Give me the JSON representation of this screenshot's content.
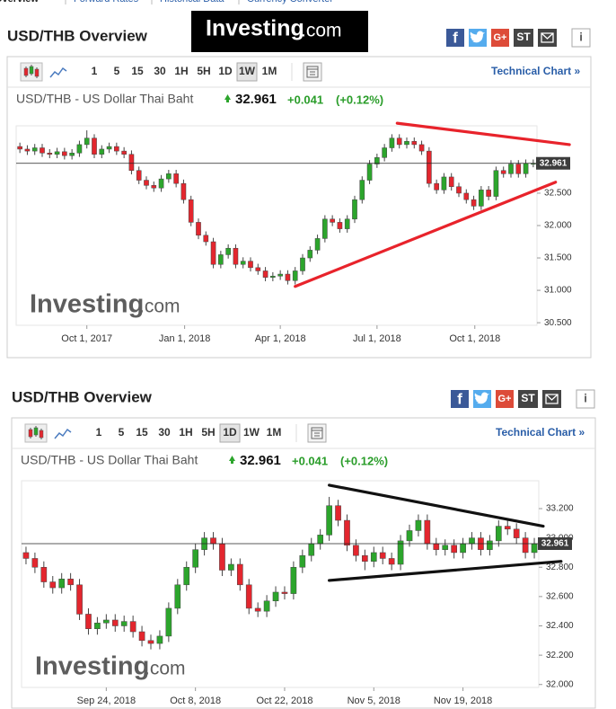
{
  "nav": [
    "Overview",
    "Forward Rates",
    "Historical Data",
    "Currency Converter"
  ],
  "logo": {
    "name": "Investing",
    "suffix": ".com"
  },
  "panels": [
    {
      "heading": "USD/THB Overview",
      "share": [
        "f",
        "G+",
        "ST"
      ],
      "info": "i",
      "intervals": [
        "1",
        "5",
        "15",
        "30",
        "1H",
        "5H",
        "1D",
        "1W",
        "1M"
      ],
      "selected_interval": "1W",
      "technical": "Technical Chart »",
      "instrument": "USD/THB - US Dollar Thai Baht",
      "price": "32.961",
      "change": "+0.041",
      "change_pct": "(+0.12%)"
    },
    {
      "heading": "USD/THB Overview",
      "share": [
        "f",
        "G+",
        "ST"
      ],
      "info": "i",
      "intervals": [
        "1",
        "5",
        "15",
        "30",
        "1H",
        "5H",
        "1D",
        "1W",
        "1M"
      ],
      "selected_interval": "1D",
      "technical": "Technical Chart »",
      "instrument": "USD/THB - US Dollar Thai Baht",
      "price": "32.961",
      "change": "+0.041",
      "change_pct": "(+0.12%)"
    }
  ],
  "chart_data": [
    {
      "type": "candlestick",
      "up_color": "#2ca52c",
      "down_color": "#e3262e",
      "categories": [
        "2017-07-30",
        "2017-08-06",
        "2017-08-13",
        "2017-08-20",
        "2017-08-27",
        "2017-09-03",
        "2017-09-10",
        "2017-09-17",
        "2017-09-24",
        "2017-10-01",
        "2017-10-08",
        "2017-10-15",
        "2017-10-22",
        "2017-10-29",
        "2017-11-05",
        "2017-11-12",
        "2017-11-19",
        "2017-11-26",
        "2017-12-03",
        "2017-12-10",
        "2017-12-17",
        "2017-12-24",
        "2017-12-31",
        "2018-01-07",
        "2018-01-14",
        "2018-01-21",
        "2018-01-28",
        "2018-02-04",
        "2018-02-11",
        "2018-02-18",
        "2018-02-25",
        "2018-03-04",
        "2018-03-11",
        "2018-03-18",
        "2018-03-25",
        "2018-04-01",
        "2018-04-08",
        "2018-04-15",
        "2018-04-22",
        "2018-04-29",
        "2018-05-06",
        "2018-05-13",
        "2018-05-20",
        "2018-05-27",
        "2018-06-03",
        "2018-06-10",
        "2018-06-17",
        "2018-06-24",
        "2018-07-01",
        "2018-07-08",
        "2018-07-15",
        "2018-07-22",
        "2018-07-29",
        "2018-08-05",
        "2018-08-12",
        "2018-08-19",
        "2018-08-26",
        "2018-09-02",
        "2018-09-09",
        "2018-09-16",
        "2018-09-23",
        "2018-09-30",
        "2018-10-07",
        "2018-10-14",
        "2018-10-21",
        "2018-10-28",
        "2018-11-04",
        "2018-11-11",
        "2018-11-18",
        "2018-11-25"
      ],
      "open": [
        33.22,
        33.18,
        33.15,
        33.2,
        33.12,
        33.1,
        33.14,
        33.08,
        33.12,
        33.25,
        33.35,
        33.1,
        33.18,
        33.22,
        33.15,
        33.1,
        32.85,
        32.7,
        32.62,
        32.58,
        32.72,
        32.8,
        32.65,
        32.4,
        32.05,
        31.85,
        31.75,
        31.4,
        31.55,
        31.65,
        31.4,
        31.45,
        31.35,
        31.3,
        31.2,
        31.22,
        31.25,
        31.15,
        31.3,
        31.5,
        31.62,
        31.8,
        32.1,
        32.05,
        31.95,
        32.1,
        32.4,
        32.7,
        32.95,
        33.05,
        33.2,
        33.35,
        33.25,
        33.3,
        33.25,
        33.15,
        32.65,
        32.55,
        32.75,
        32.6,
        32.5,
        32.4,
        32.3,
        32.55,
        32.45,
        32.85,
        32.8,
        32.95,
        32.8,
        32.96
      ],
      "high": [
        33.28,
        33.24,
        33.26,
        33.26,
        33.18,
        33.2,
        33.2,
        33.18,
        33.31,
        33.47,
        33.41,
        33.24,
        33.28,
        33.28,
        33.21,
        33.16,
        32.91,
        32.76,
        32.68,
        32.78,
        32.86,
        32.86,
        32.71,
        32.46,
        32.11,
        31.91,
        31.81,
        31.61,
        31.71,
        31.71,
        31.51,
        31.51,
        31.41,
        31.36,
        31.28,
        31.31,
        31.31,
        31.36,
        31.56,
        31.68,
        31.86,
        32.16,
        32.16,
        32.11,
        32.16,
        32.46,
        32.76,
        33.01,
        33.11,
        33.26,
        33.41,
        33.41,
        33.36,
        33.36,
        33.31,
        33.21,
        32.71,
        32.81,
        32.81,
        32.66,
        32.56,
        32.46,
        32.61,
        32.61,
        32.91,
        32.91,
        33.01,
        33.01,
        33.02,
        33.02
      ],
      "low": [
        33.12,
        33.09,
        33.09,
        33.06,
        33.04,
        33.04,
        33.02,
        33.02,
        33.06,
        33.19,
        33.04,
        33.04,
        33.12,
        33.09,
        33.04,
        32.79,
        32.64,
        32.56,
        32.52,
        32.52,
        32.66,
        32.59,
        32.34,
        31.99,
        31.79,
        31.69,
        31.34,
        31.34,
        31.49,
        31.34,
        31.34,
        31.29,
        31.24,
        31.14,
        31.14,
        31.16,
        31.09,
        31.09,
        31.24,
        31.44,
        31.56,
        31.74,
        31.99,
        31.89,
        31.89,
        32.04,
        32.34,
        32.64,
        32.89,
        32.99,
        33.14,
        33.19,
        33.19,
        33.19,
        33.09,
        32.59,
        32.49,
        32.49,
        32.54,
        32.44,
        32.34,
        32.24,
        32.24,
        32.39,
        32.39,
        32.74,
        32.74,
        32.74,
        32.74,
        32.9
      ],
      "close": [
        33.18,
        33.15,
        33.2,
        33.12,
        33.1,
        33.14,
        33.08,
        33.12,
        33.25,
        33.35,
        33.1,
        33.18,
        33.22,
        33.15,
        33.1,
        32.85,
        32.7,
        32.62,
        32.58,
        32.72,
        32.8,
        32.65,
        32.4,
        32.05,
        31.85,
        31.75,
        31.4,
        31.55,
        31.65,
        31.4,
        31.45,
        31.35,
        31.3,
        31.2,
        31.22,
        31.25,
        31.15,
        31.3,
        31.5,
        31.62,
        31.8,
        32.1,
        32.05,
        31.95,
        32.1,
        32.4,
        32.7,
        32.95,
        33.05,
        33.2,
        33.35,
        33.25,
        33.3,
        33.25,
        33.15,
        32.65,
        32.55,
        32.75,
        32.6,
        32.5,
        32.4,
        32.3,
        32.55,
        32.45,
        32.85,
        32.8,
        32.95,
        32.8,
        32.96,
        32.96
      ],
      "ylim": [
        30.46,
        33.54
      ],
      "yticks": [
        {
          "value": 30.5,
          "label": "30.500"
        },
        {
          "value": 31,
          "label": "31.000"
        },
        {
          "value": 31.5,
          "label": "31.500"
        },
        {
          "value": 32,
          "label": "32.000"
        },
        {
          "value": 32.5,
          "label": "32.500"
        }
      ],
      "xticks": [
        {
          "value": "2017-10-01",
          "label": "Oct 1, 2017"
        },
        {
          "value": "2018-01-01",
          "label": "Jan 1, 2018"
        },
        {
          "value": "2018-04-01",
          "label": "Apr 1, 2018"
        },
        {
          "value": "2018-07-01",
          "label": "Jul 1, 2018"
        },
        {
          "value": "2018-10-01",
          "label": "Oct 1, 2018"
        }
      ],
      "last": 32.961,
      "trendlines": [
        {
          "color": "#e8232b",
          "x": [
            "2018-07-20",
            "2018-12-29"
          ],
          "y": [
            33.58,
            33.25
          ]
        },
        {
          "color": "#e8232b",
          "x": [
            "2018-04-15",
            "2018-12-16"
          ],
          "y": [
            31.06,
            32.67
          ]
        }
      ]
    },
    {
      "type": "candlestick",
      "up_color": "#2ca52c",
      "down_color": "#e3262e",
      "categories": [
        "2018-09-11",
        "2018-09-12",
        "2018-09-13",
        "2018-09-14",
        "2018-09-17",
        "2018-09-18",
        "2018-09-19",
        "2018-09-20",
        "2018-09-21",
        "2018-09-24",
        "2018-09-25",
        "2018-09-26",
        "2018-09-27",
        "2018-09-28",
        "2018-10-01",
        "2018-10-02",
        "2018-10-03",
        "2018-10-04",
        "2018-10-05",
        "2018-10-08",
        "2018-10-09",
        "2018-10-10",
        "2018-10-11",
        "2018-10-12",
        "2018-10-15",
        "2018-10-16",
        "2018-10-17",
        "2018-10-18",
        "2018-10-19",
        "2018-10-22",
        "2018-10-23",
        "2018-10-24",
        "2018-10-25",
        "2018-10-26",
        "2018-10-29",
        "2018-10-30",
        "2018-10-31",
        "2018-11-01",
        "2018-11-02",
        "2018-11-05",
        "2018-11-06",
        "2018-11-07",
        "2018-11-08",
        "2018-11-09",
        "2018-11-12",
        "2018-11-13",
        "2018-11-14",
        "2018-11-15",
        "2018-11-16",
        "2018-11-19",
        "2018-11-20",
        "2018-11-21",
        "2018-11-22",
        "2018-11-23",
        "2018-11-26",
        "2018-11-27",
        "2018-11-28",
        "2018-11-29"
      ],
      "open": [
        32.9,
        32.86,
        32.8,
        32.7,
        32.66,
        32.72,
        32.68,
        32.48,
        32.38,
        32.42,
        32.44,
        32.4,
        32.43,
        32.36,
        32.3,
        32.28,
        32.33,
        32.52,
        32.68,
        32.8,
        32.92,
        33.0,
        32.96,
        32.78,
        32.82,
        32.68,
        32.52,
        32.5,
        32.57,
        32.63,
        32.62,
        32.8,
        32.88,
        32.96,
        33.02,
        33.22,
        33.12,
        32.95,
        32.88,
        32.84,
        32.9,
        32.86,
        32.82,
        32.98,
        33.05,
        33.12,
        32.96,
        32.92,
        32.95,
        32.9,
        32.96,
        33.0,
        32.92,
        32.98,
        33.08,
        33.06,
        33.0,
        32.9
      ],
      "high": [
        32.94,
        32.9,
        32.84,
        32.74,
        32.76,
        32.76,
        32.72,
        32.52,
        32.46,
        32.48,
        32.48,
        32.47,
        32.47,
        32.4,
        32.34,
        32.37,
        32.56,
        32.72,
        32.84,
        32.96,
        33.04,
        33.04,
        33.0,
        32.86,
        32.86,
        32.72,
        32.56,
        32.61,
        32.67,
        32.67,
        32.84,
        32.92,
        33.0,
        33.06,
        33.28,
        33.26,
        33.16,
        32.99,
        32.92,
        32.94,
        32.94,
        32.9,
        33.02,
        33.09,
        33.16,
        33.16,
        33.0,
        32.99,
        32.99,
        33.0,
        33.04,
        33.04,
        33.02,
        33.12,
        33.12,
        33.1,
        33.04,
        33.0
      ],
      "low": [
        32.82,
        32.76,
        32.66,
        32.62,
        32.62,
        32.64,
        32.44,
        32.34,
        32.34,
        32.38,
        32.36,
        32.36,
        32.32,
        32.26,
        32.24,
        32.24,
        32.29,
        32.48,
        32.64,
        32.76,
        32.88,
        32.92,
        32.74,
        32.74,
        32.64,
        32.48,
        32.46,
        32.46,
        32.53,
        32.58,
        32.58,
        32.76,
        32.84,
        32.92,
        32.98,
        33.08,
        32.91,
        32.84,
        32.78,
        32.8,
        32.82,
        32.78,
        32.78,
        32.94,
        33.01,
        32.92,
        32.88,
        32.88,
        32.86,
        32.86,
        32.92,
        32.88,
        32.88,
        32.94,
        33.02,
        32.96,
        32.86,
        32.86
      ],
      "close": [
        32.86,
        32.8,
        32.7,
        32.66,
        32.72,
        32.68,
        32.48,
        32.38,
        32.42,
        32.44,
        32.4,
        32.43,
        32.36,
        32.3,
        32.28,
        32.33,
        32.52,
        32.68,
        32.8,
        32.92,
        33.0,
        32.96,
        32.78,
        32.82,
        32.68,
        32.52,
        32.5,
        32.57,
        32.63,
        32.62,
        32.8,
        32.88,
        32.96,
        33.02,
        33.22,
        33.12,
        32.95,
        32.88,
        32.84,
        32.9,
        32.86,
        32.82,
        32.98,
        33.05,
        33.12,
        32.96,
        32.92,
        32.95,
        32.9,
        32.96,
        33.0,
        32.92,
        32.98,
        33.08,
        33.06,
        33.0,
        32.9,
        32.96
      ],
      "ylim": [
        31.98,
        33.39
      ],
      "yticks": [
        {
          "value": 32,
          "label": "32.000"
        },
        {
          "value": 32.2,
          "label": "32.200"
        },
        {
          "value": 32.4,
          "label": "32.400"
        },
        {
          "value": 32.6,
          "label": "32.600"
        },
        {
          "value": 32.8,
          "label": "32.800"
        },
        {
          "value": 33,
          "label": "33.000"
        },
        {
          "value": 33.2,
          "label": "33.200"
        }
      ],
      "xticks": [
        {
          "value": "2018-09-24",
          "label": "Sep 24, 2018"
        },
        {
          "value": "2018-10-08",
          "label": "Oct 8, 2018"
        },
        {
          "value": "2018-10-22",
          "label": "Oct 22, 2018"
        },
        {
          "value": "2018-11-05",
          "label": "Nov 5, 2018"
        },
        {
          "value": "2018-11-19",
          "label": "Nov 19, 2018"
        }
      ],
      "last": 32.961,
      "trendlines": [
        {
          "color": "#111111",
          "x": [
            "2018-10-29",
            "2018-11-30"
          ],
          "y": [
            33.36,
            33.08
          ]
        },
        {
          "color": "#111111",
          "x": [
            "2018-10-29",
            "2018-12-02"
          ],
          "y": [
            32.71,
            32.84
          ]
        }
      ]
    }
  ]
}
